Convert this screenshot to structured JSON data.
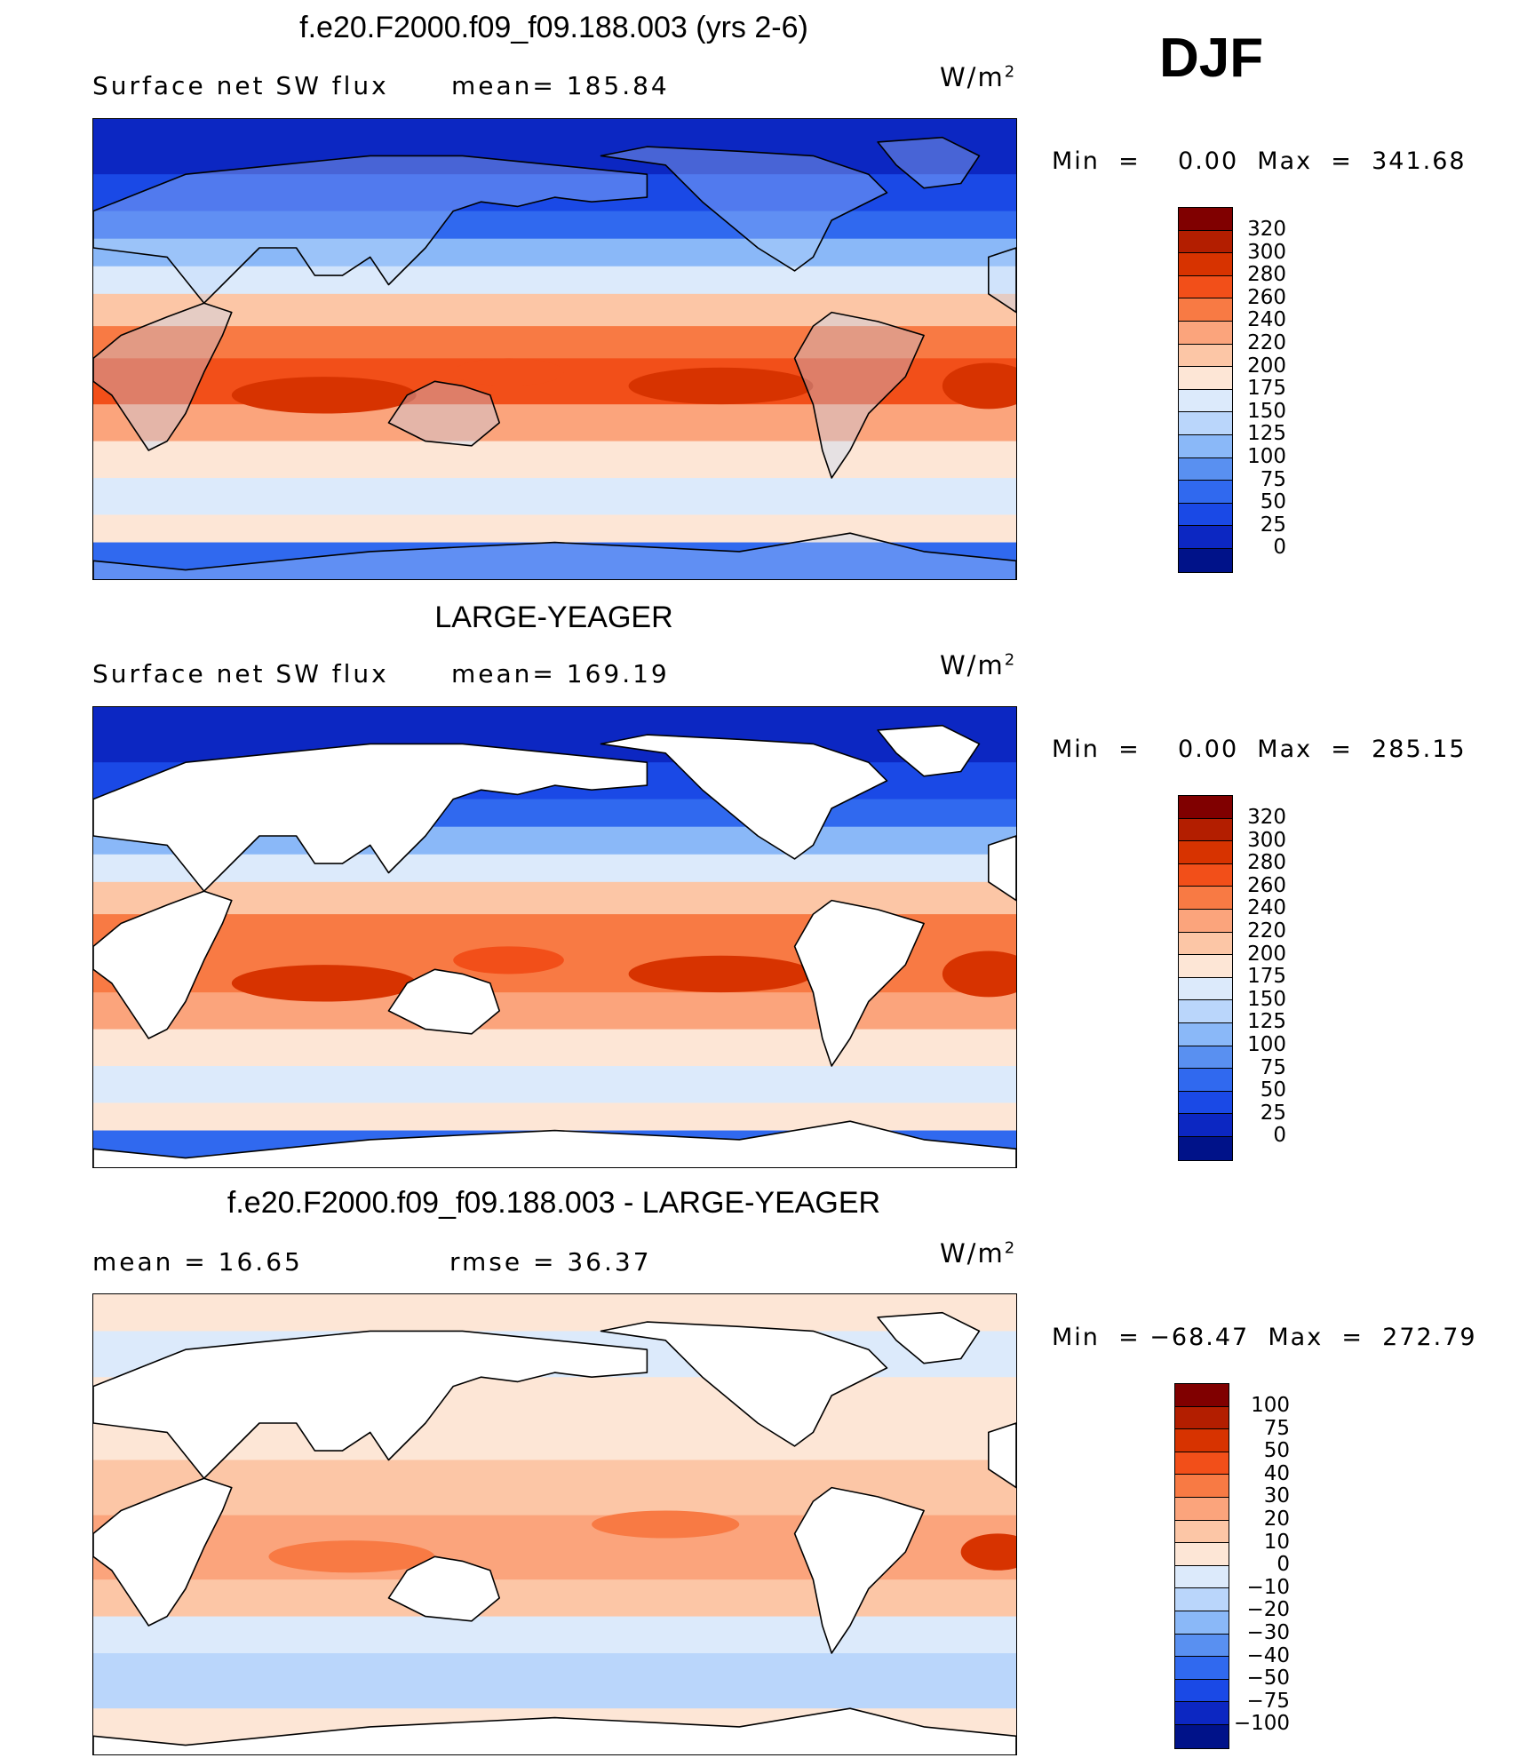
{
  "header": {
    "label": "DJF"
  },
  "panels": [
    {
      "title": "f.e20.F2000.f09_f09.188.003 (yrs 2-6)",
      "subtitle_left": "Surface net SW flux",
      "subtitle_mid": "mean=  185.84",
      "units": "W/m",
      "units_sup": "2",
      "minmax": "Min  =    0.00  Max  =  341.68",
      "colorbar_labels": [
        "320",
        "300",
        "280",
        "260",
        "240",
        "220",
        "200",
        "175",
        "150",
        "125",
        "100",
        "75",
        "50",
        "25",
        "0"
      ],
      "colorbar_colors": [
        "#800000",
        "#b31e00",
        "#d73300",
        "#f24f19",
        "#f87a44",
        "#fba47c",
        "#fcc6a6",
        "#fde6d6",
        "#dceafb",
        "#bad6fb",
        "#8ab8f8",
        "#5990f1",
        "#3069ef",
        "#1a49e6",
        "#0c27c2",
        "#001289"
      ],
      "fill_mode": "full"
    },
    {
      "title": "LARGE-YEAGER",
      "subtitle_left": "Surface net SW flux",
      "subtitle_mid": "mean=  169.19",
      "units": "W/m",
      "units_sup": "2",
      "minmax": "Min  =    0.00  Max  =  285.15",
      "colorbar_labels": [
        "320",
        "300",
        "280",
        "260",
        "240",
        "220",
        "200",
        "175",
        "150",
        "125",
        "100",
        "75",
        "50",
        "25",
        "0"
      ],
      "colorbar_colors": [
        "#800000",
        "#b31e00",
        "#d73300",
        "#f24f19",
        "#f87a44",
        "#fba47c",
        "#fcc6a6",
        "#fde6d6",
        "#dceafb",
        "#bad6fb",
        "#8ab8f8",
        "#5990f1",
        "#3069ef",
        "#1a49e6",
        "#0c27c2",
        "#001289"
      ],
      "fill_mode": "ocean"
    },
    {
      "title": "f.e20.F2000.f09_f09.188.003 - LARGE-YEAGER",
      "subtitle_left": "mean  =    16.65",
      "subtitle_mid": "rmse  =    36.37",
      "units": "W/m",
      "units_sup": "2",
      "minmax": "Min  = −68.47  Max  =  272.79",
      "colorbar_labels": [
        "100",
        "75",
        "50",
        "40",
        "30",
        "20",
        "10",
        "0",
        "−10",
        "−20",
        "−30",
        "−40",
        "−50",
        "−75",
        "−100"
      ],
      "colorbar_colors": [
        "#800000",
        "#b31e00",
        "#d73300",
        "#f24f19",
        "#f87a44",
        "#fba47c",
        "#fcc6a6",
        "#fde6d6",
        "#dceafb",
        "#bad6fb",
        "#8ab8f8",
        "#5990f1",
        "#3069ef",
        "#1a49e6",
        "#0c27c2",
        "#001289"
      ],
      "fill_mode": "diff"
    }
  ]
}
